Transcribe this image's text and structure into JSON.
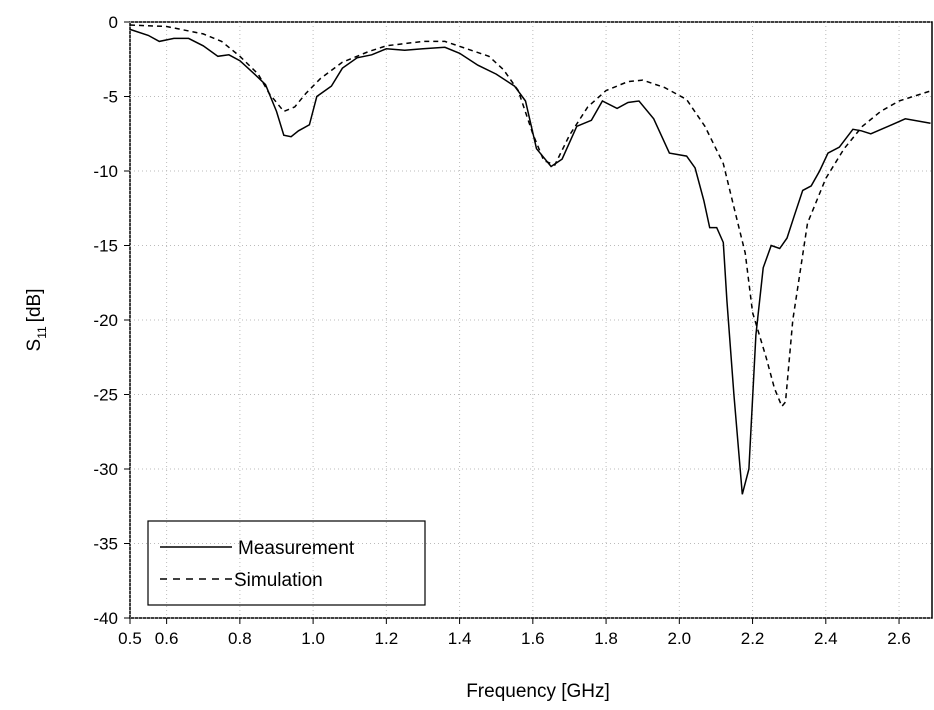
{
  "chart_data": {
    "type": "line",
    "x_label": "Frequency [GHz]",
    "y_label": "S",
    "y_label_sub": "11",
    "y_label_unit": "[dB]",
    "xlim": [
      0.5,
      2.69
    ],
    "ylim": [
      -40,
      0
    ],
    "xticks": [
      0.5,
      0.6,
      0.8,
      {
        "value": 1,
        "label": "1.0"
      },
      1.2,
      1.4,
      1.6,
      1.8,
      {
        "value": 2,
        "label": "2.0"
      },
      2.2,
      2.4,
      2.6
    ],
    "yticks": [
      -40,
      -35,
      -30,
      -25,
      -20,
      -15,
      -10,
      -5,
      0
    ],
    "grid": true,
    "series": [
      {
        "name": "Measurement",
        "color": "#000000",
        "dash": "solid",
        "x": [
          0.5,
          0.55,
          0.58,
          0.62,
          0.66,
          0.7,
          0.74,
          0.77,
          0.8,
          0.84,
          0.87,
          0.9,
          0.92,
          0.94,
          0.96,
          0.99,
          1.01,
          1.05,
          1.08,
          1.12,
          1.16,
          1.2,
          1.25,
          1.3,
          1.36,
          1.4,
          1.45,
          1.5,
          1.55,
          1.58,
          1.61,
          1.65,
          1.68,
          1.72,
          1.76,
          1.79,
          1.83,
          1.86,
          1.89,
          1.93,
          1.973,
          2.02,
          2.043,
          2.067,
          2.083,
          2.102,
          2.12,
          2.13,
          2.149,
          2.172,
          2.19,
          2.209,
          2.229,
          2.251,
          2.274,
          2.294,
          2.314,
          2.337,
          2.36,
          2.383,
          2.406,
          2.437,
          2.474,
          2.497,
          2.523,
          2.58,
          2.617,
          2.686
        ],
        "values": [
          -0.5,
          -0.9,
          -1.3,
          -1.1,
          -1.1,
          -1.6,
          -2.3,
          -2.2,
          -2.6,
          -3.5,
          -4.2,
          -6,
          -7.6,
          -7.7,
          -7.3,
          -6.9,
          -5,
          -4.3,
          -3.1,
          -2.4,
          -2.2,
          -1.8,
          -1.9,
          -1.8,
          -1.7,
          -2.1,
          -2.9,
          -3.5,
          -4.3,
          -5.3,
          -8.5,
          -9.7,
          -9.2,
          -7,
          -6.6,
          -5.3,
          -5.8,
          -5.4,
          -5.3,
          -6.5,
          -8.8,
          -9,
          -9.8,
          -12,
          -13.8,
          -13.8,
          -14.8,
          -18.7,
          -25,
          -31.7,
          -30,
          -21,
          -16.5,
          -15,
          -15.2,
          -14.5,
          -13,
          -11.3,
          -11,
          -10,
          -8.8,
          -8.4,
          -7.2,
          -7.3,
          -7.5,
          -6.9,
          -6.5,
          -6.8
        ]
      },
      {
        "name": "Simulation",
        "color": "#000000",
        "dash": "dashed",
        "x": [
          0.5,
          0.6,
          0.7,
          0.75,
          0.8,
          0.85,
          0.88,
          0.92,
          0.95,
          0.98,
          1.02,
          1.08,
          1.15,
          1.2,
          1.3,
          1.36,
          1.42,
          1.48,
          1.52,
          1.56,
          1.6,
          1.63,
          1.66,
          1.7,
          1.75,
          1.8,
          1.86,
          1.9,
          1.96,
          2.02,
          2.07,
          2.12,
          2.15,
          2.18,
          2.2,
          2.237,
          2.26,
          2.28,
          2.29,
          2.31,
          2.35,
          2.4,
          2.45,
          2.5,
          2.55,
          2.6,
          2.69
        ],
        "values": [
          -0.2,
          -0.3,
          -0.8,
          -1.3,
          -2.3,
          -3.5,
          -4.8,
          -6,
          -5.7,
          -4.8,
          -3.8,
          -2.7,
          -2,
          -1.6,
          -1.3,
          -1.3,
          -1.8,
          -2.3,
          -3.2,
          -4.6,
          -7.5,
          -9.3,
          -9.6,
          -7.6,
          -5.7,
          -4.6,
          -4,
          -3.9,
          -4.4,
          -5.2,
          -7,
          -9.5,
          -12.5,
          -15.5,
          -19.5,
          -22.5,
          -24.6,
          -25.8,
          -25.5,
          -20,
          -13.5,
          -10.5,
          -8.5,
          -7,
          -6,
          -5.3,
          -4.6
        ]
      }
    ]
  }
}
